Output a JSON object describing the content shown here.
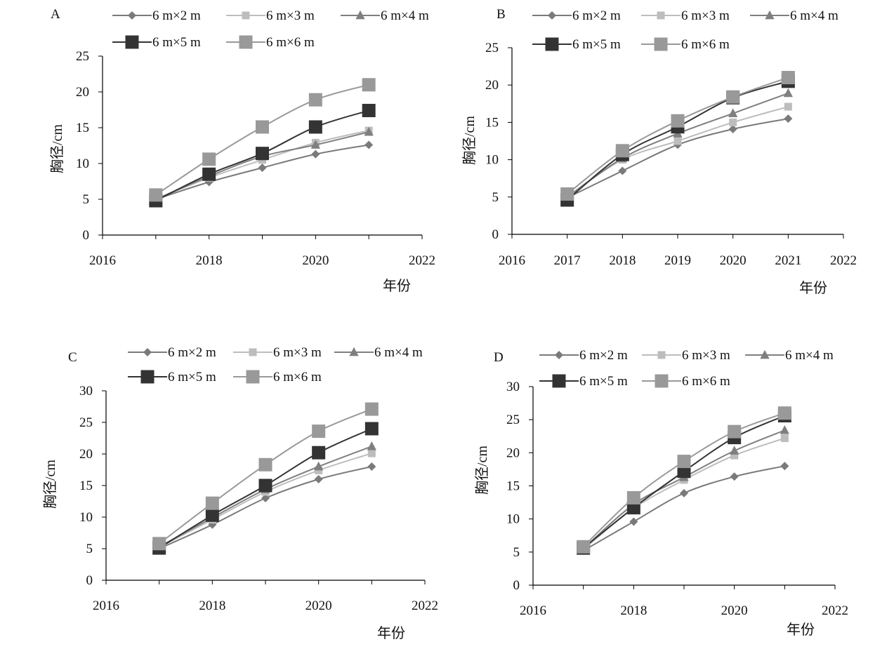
{
  "series_styles": {
    "6 m×2 m": {
      "color": "#7a7a7a",
      "marker": "diamond",
      "line_width": 2
    },
    "6 m×3 m": {
      "color": "#bdbdbd",
      "marker": "square-small",
      "line_width": 2
    },
    "6 m×4 m": {
      "color": "#7f7f7f",
      "marker": "triangle",
      "line_width": 2
    },
    "6 m×5 m": {
      "color": "#333333",
      "marker": "square-large",
      "line_width": 2
    },
    "6 m×6 m": {
      "color": "#999999",
      "marker": "square-large",
      "line_width": 2
    }
  },
  "chart_data": [
    {
      "panel": "A",
      "type": "line",
      "xlabel": "年份",
      "ylabel": "胸径/cm",
      "xlim": [
        2016,
        2022
      ],
      "ylim": [
        0,
        25
      ],
      "xticks": [
        "2016",
        "2018",
        "2020",
        "2022"
      ],
      "yticks": [
        "0",
        "5",
        "10",
        "15",
        "20",
        "25"
      ],
      "x": [
        2017,
        2018,
        2019,
        2020,
        2021
      ],
      "grid": false,
      "legend_position": "top",
      "series": [
        {
          "name": "6 m×2 m",
          "values": [
            5.0,
            7.4,
            9.4,
            11.3,
            12.6
          ]
        },
        {
          "name": "6 m×3 m",
          "values": [
            5.0,
            8.0,
            10.5,
            12.9,
            14.6
          ]
        },
        {
          "name": "6 m×4 m",
          "values": [
            5.0,
            8.2,
            11.0,
            12.6,
            14.4
          ]
        },
        {
          "name": "6 m×5 m",
          "values": [
            4.8,
            8.5,
            11.4,
            15.1,
            17.4
          ]
        },
        {
          "name": "6 m×6 m",
          "values": [
            5.6,
            10.6,
            15.1,
            18.9,
            21.0
          ]
        }
      ]
    },
    {
      "panel": "B",
      "type": "line",
      "xlabel": "年份",
      "ylabel": "胸径/cm",
      "xlim": [
        2016,
        2022
      ],
      "ylim": [
        0,
        25
      ],
      "xticks": [
        "2016",
        "2017",
        "2018",
        "2019",
        "2020",
        "2021",
        "2022"
      ],
      "yticks": [
        "0",
        "5",
        "10",
        "15",
        "20",
        "25"
      ],
      "x": [
        2017,
        2018,
        2019,
        2020,
        2021
      ],
      "grid": false,
      "legend_position": "top",
      "series": [
        {
          "name": "6 m×2 m",
          "values": [
            4.9,
            8.5,
            12.0,
            14.1,
            15.5
          ]
        },
        {
          "name": "6 m×3 m",
          "values": [
            5.0,
            10.0,
            12.5,
            15.0,
            17.1
          ]
        },
        {
          "name": "6 m×4 m",
          "values": [
            5.0,
            10.2,
            13.5,
            16.2,
            18.9
          ]
        },
        {
          "name": "6 m×5 m",
          "values": [
            4.6,
            10.7,
            14.4,
            18.3,
            20.5
          ]
        },
        {
          "name": "6 m×6 m",
          "values": [
            5.4,
            11.2,
            15.2,
            18.4,
            21.0
          ]
        }
      ]
    },
    {
      "panel": "C",
      "type": "line",
      "xlabel": "年份",
      "ylabel": "胸径/cm",
      "xlim": [
        2016,
        2022
      ],
      "ylim": [
        0,
        30
      ],
      "xticks": [
        "2016",
        "2018",
        "2020",
        "2022"
      ],
      "yticks": [
        "0",
        "5",
        "10",
        "15",
        "20",
        "25",
        "30"
      ],
      "x": [
        2017,
        2018,
        2019,
        2020,
        2021
      ],
      "grid": false,
      "legend_position": "top",
      "series": [
        {
          "name": "6 m×2 m",
          "values": [
            5.0,
            8.8,
            13.0,
            16.0,
            18.0
          ]
        },
        {
          "name": "6 m×3 m",
          "values": [
            5.2,
            9.6,
            14.0,
            17.4,
            20.1
          ]
        },
        {
          "name": "6 m×4 m",
          "values": [
            5.3,
            9.9,
            14.4,
            18.0,
            21.2
          ]
        },
        {
          "name": "6 m×5 m",
          "values": [
            5.1,
            10.3,
            15.0,
            20.2,
            24.0
          ]
        },
        {
          "name": "6 m×6 m",
          "values": [
            5.8,
            12.2,
            18.3,
            23.6,
            27.1
          ]
        }
      ]
    },
    {
      "panel": "D",
      "type": "line",
      "xlabel": "年份",
      "ylabel": "胸径/cm",
      "xlim": [
        2016,
        2022
      ],
      "ylim": [
        0,
        30
      ],
      "xticks": [
        "2016",
        "2018",
        "2020",
        "2022"
      ],
      "yticks": [
        "0",
        "5",
        "10",
        "15",
        "20",
        "25",
        "30"
      ],
      "x": [
        2017,
        2018,
        2019,
        2020,
        2021
      ],
      "grid": false,
      "legend_position": "top",
      "series": [
        {
          "name": "6 m×2 m",
          "values": [
            5.2,
            9.6,
            13.9,
            16.4,
            18.0
          ]
        },
        {
          "name": "6 m×3 m",
          "values": [
            5.4,
            11.6,
            15.9,
            19.6,
            22.2
          ]
        },
        {
          "name": "6 m×4 m",
          "values": [
            5.5,
            12.2,
            16.3,
            20.3,
            23.4
          ]
        },
        {
          "name": "6 m×5 m",
          "values": [
            5.6,
            11.7,
            17.2,
            22.3,
            25.6
          ]
        },
        {
          "name": "6 m×6 m",
          "values": [
            5.8,
            13.2,
            18.7,
            23.2,
            26.0
          ]
        }
      ]
    }
  ]
}
